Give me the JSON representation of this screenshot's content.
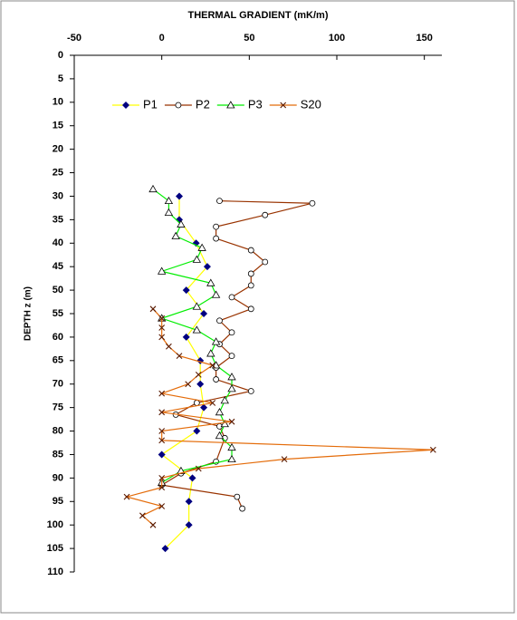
{
  "chart_data": {
    "type": "line",
    "title": "THERMAL GRADIENT (mK/m)",
    "y_label": "DEPTH z (m)",
    "xlim": [
      -50,
      160
    ],
    "xticks": [
      -50,
      0,
      50,
      100,
      150
    ],
    "ylim": [
      0,
      110
    ],
    "yticks": [
      0,
      5,
      10,
      15,
      20,
      25,
      30,
      35,
      40,
      45,
      50,
      55,
      60,
      65,
      70,
      75,
      80,
      85,
      90,
      95,
      100,
      105,
      110
    ],
    "y_inverted": true,
    "legend": "upper left",
    "series": [
      {
        "name": "P1",
        "color": "#ffff00",
        "marker": "diamond",
        "marker_color": "#000080",
        "x": [
          10,
          10,
          19.6,
          26,
          14,
          24,
          14,
          22,
          22,
          24,
          20,
          0,
          17.5,
          15.5,
          15.5,
          2
        ],
        "y": [
          30,
          35,
          40,
          45,
          50,
          55,
          60,
          65,
          70,
          75,
          80,
          85,
          90,
          95,
          100,
          105
        ]
      },
      {
        "name": "P2",
        "color": "#993300",
        "marker": "circle",
        "marker_color": "#000000",
        "x": [
          33,
          86,
          59,
          31,
          31,
          51,
          59,
          51,
          51,
          40,
          51,
          33,
          40,
          33,
          40,
          31,
          31,
          51,
          20,
          8,
          33,
          36,
          31,
          11,
          0,
          43,
          46
        ],
        "y": [
          31,
          31.5,
          34,
          36.5,
          39,
          41.5,
          44,
          46.5,
          49,
          51.5,
          54,
          56.5,
          59,
          61.5,
          64,
          66.5,
          69,
          71.5,
          74,
          76.5,
          79,
          81.5,
          86.5,
          89,
          91.5,
          94,
          96.5
        ]
      },
      {
        "name": "P3",
        "color": "#00ee00",
        "marker": "triangle",
        "marker_color": "#000000",
        "x": [
          -5,
          4,
          4,
          11,
          8,
          23,
          20,
          0,
          28,
          31,
          20,
          0,
          20,
          31,
          28,
          31,
          40,
          40,
          36,
          33,
          36,
          33,
          40,
          40,
          11,
          0
        ],
        "y": [
          28.5,
          31,
          33.5,
          36,
          38.5,
          41,
          43.5,
          46,
          48.5,
          51,
          53.5,
          56,
          58.5,
          61,
          63.5,
          66,
          68.5,
          71,
          73.5,
          76,
          78.5,
          81,
          83.5,
          86,
          88.5,
          91
        ]
      },
      {
        "name": "S20",
        "color": "#e46c0a",
        "marker": "cross",
        "marker_color": "#5a1a00",
        "x": [
          -5,
          0,
          0,
          0,
          4,
          10,
          29,
          21,
          15,
          0,
          29,
          0,
          40,
          0,
          0,
          155,
          70,
          21,
          0,
          0,
          -20,
          0,
          -11,
          -5
        ],
        "y": [
          54,
          56,
          58,
          60,
          62,
          64,
          66,
          68,
          70,
          72,
          74,
          76,
          78,
          80,
          82,
          84,
          86,
          88,
          90,
          92,
          94,
          96,
          98,
          100
        ]
      }
    ]
  }
}
